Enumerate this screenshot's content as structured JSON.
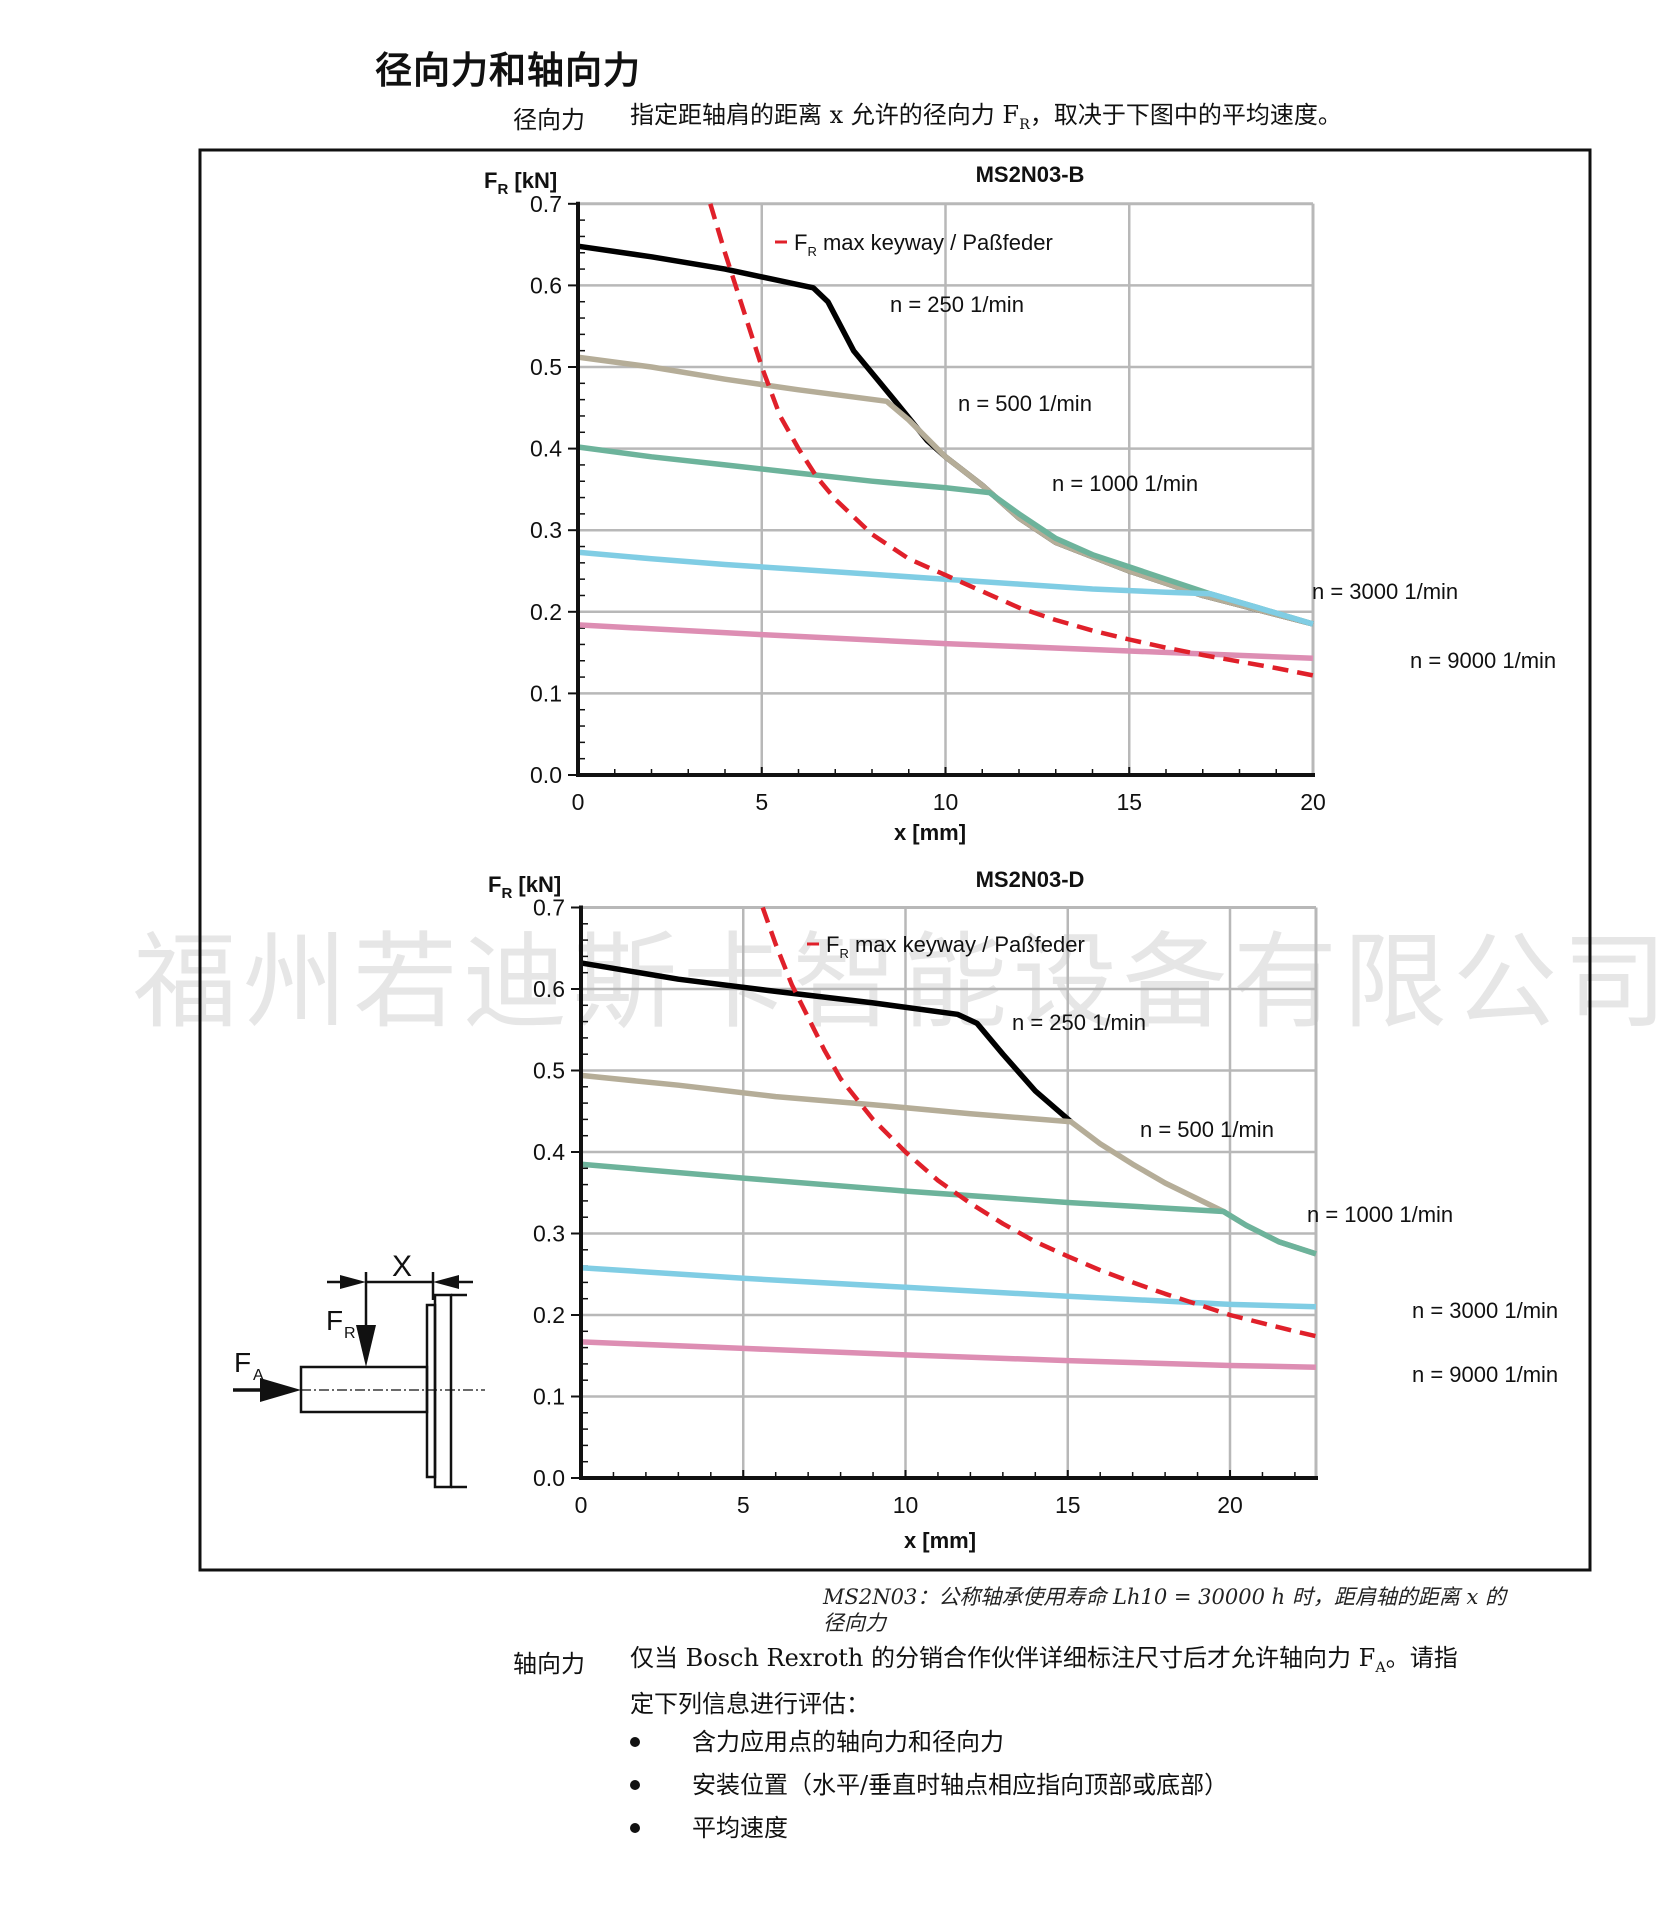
{
  "page": {
    "title": "径向力和轴向力",
    "radial": {
      "label": "径向力",
      "text_before": "指定距轴肩的距离 x 允许的径向力 F",
      "text_sub": "R",
      "text_after": "，取决于下图中的平均速度。"
    },
    "caption": {
      "line1": "MS2N03：公称轴承使用寿命 Lh10 = 30000 h 时，距肩轴的距离 x 的",
      "line2": "径向力"
    },
    "axial": {
      "label": "轴向力",
      "line1_before": "仅当 Bosch Rexroth 的分销合作伙伴详细标注尺寸后才允许轴向力 F",
      "line1_sub": "A",
      "line1_after": "。请指",
      "line2": "定下列信息进行评估：",
      "bullets": [
        "含力应用点的轴向力和径向力",
        "安装位置（水平/垂直时轴点相应指向顶部或底部）",
        "平均速度"
      ]
    },
    "watermark": "福州若迪斯卡智能设备有限公司",
    "diagram": {
      "x_label": "X",
      "fr_label": "F",
      "fr_sub": "R",
      "fa_label": "F",
      "fa_sub": "A"
    }
  },
  "colors": {
    "n250": "#000000",
    "n500": "#b5ad98",
    "n1000": "#6db39b",
    "n3000": "#80cde4",
    "n9000": "#dd8eb3",
    "fr_max": "#e0202a",
    "grid": "#b8b8b8",
    "watermark": "#e6e6e6"
  },
  "chart_data": [
    {
      "type": "line",
      "title": "MS2N03-B",
      "xlabel": "x [mm]",
      "ylabel": "F_R [kN]",
      "xlim": [
        0,
        20
      ],
      "ylim": [
        0,
        0.7
      ],
      "xticks": [
        "0",
        "5",
        "10",
        "15",
        "20"
      ],
      "yticks": [
        "0.0",
        "0.1",
        "0.2",
        "0.3",
        "0.4",
        "0.5",
        "0.6",
        "0.7"
      ],
      "grid": true,
      "legend": "F_R max keyway / Paßfeder",
      "series": [
        {
          "name": "n = 250 1/min",
          "color_key": "n250",
          "x": [
            0,
            2,
            4,
            6.4,
            6.8,
            7.5,
            8.6,
            9.5,
            10,
            11,
            12,
            13,
            15,
            17,
            20
          ],
          "y": [
            0.648,
            0.635,
            0.62,
            0.597,
            0.58,
            0.52,
            0.46,
            0.41,
            0.39,
            0.355,
            0.315,
            0.285,
            0.25,
            0.22,
            0.185
          ]
        },
        {
          "name": "n = 500 1/min",
          "color_key": "n500",
          "x": [
            0,
            2,
            4,
            6,
            8.4,
            9,
            10,
            11,
            12,
            13,
            15,
            17,
            20
          ],
          "y": [
            0.512,
            0.5,
            0.485,
            0.472,
            0.458,
            0.435,
            0.39,
            0.355,
            0.315,
            0.285,
            0.25,
            0.22,
            0.185
          ]
        },
        {
          "name": "n = 1000 1/min",
          "color_key": "n1000",
          "x": [
            0,
            2,
            4,
            6,
            8,
            10,
            11.2,
            12,
            13,
            14,
            15,
            16,
            17.2,
            18.5,
            20
          ],
          "y": [
            0.402,
            0.39,
            0.38,
            0.37,
            0.36,
            0.352,
            0.346,
            0.32,
            0.29,
            0.27,
            0.255,
            0.24,
            0.222,
            0.205,
            0.185
          ]
        },
        {
          "name": "n = 3000 1/min",
          "color_key": "n3000",
          "x": [
            0,
            2,
            4,
            6,
            8,
            10,
            12,
            14,
            16,
            17.2,
            18.5,
            20
          ],
          "y": [
            0.273,
            0.265,
            0.258,
            0.252,
            0.246,
            0.24,
            0.234,
            0.228,
            0.224,
            0.222,
            0.205,
            0.185
          ]
        },
        {
          "name": "n = 9000 1/min",
          "color_key": "n9000",
          "x": [
            0,
            5,
            10,
            15,
            20
          ],
          "y": [
            0.184,
            0.172,
            0.161,
            0.152,
            0.143
          ]
        },
        {
          "name": "F_R max keyway / Paßfeder",
          "color_key": "fr_max",
          "dashed": true,
          "x": [
            3.6,
            4,
            4.5,
            5,
            5.5,
            6,
            6.5,
            7,
            8,
            9,
            10,
            11,
            12,
            13,
            14,
            15,
            16,
            17,
            18,
            19,
            20
          ],
          "y": [
            0.7,
            0.64,
            0.57,
            0.5,
            0.44,
            0.4,
            0.365,
            0.338,
            0.295,
            0.265,
            0.245,
            0.225,
            0.205,
            0.19,
            0.177,
            0.166,
            0.156,
            0.147,
            0.139,
            0.131,
            0.122
          ]
        }
      ]
    },
    {
      "type": "line",
      "title": "MS2N03-D",
      "xlabel": "x [mm]",
      "ylabel": "F_R [kN]",
      "xlim": [
        0,
        22.65
      ],
      "ylim": [
        0,
        0.7
      ],
      "xticks": [
        "0",
        "5",
        "10",
        "15",
        "20"
      ],
      "yticks": [
        "0.0",
        "0.1",
        "0.2",
        "0.3",
        "0.4",
        "0.5",
        "0.6",
        "0.7"
      ],
      "grid": true,
      "legend": "F_R max keyway / Paßfeder",
      "series": [
        {
          "name": "n = 250 1/min",
          "color_key": "n250",
          "x": [
            0,
            3,
            6,
            9,
            11.6,
            12.2,
            13,
            14,
            15.1
          ],
          "y": [
            0.632,
            0.612,
            0.597,
            0.583,
            0.569,
            0.558,
            0.52,
            0.475,
            0.437
          ]
        },
        {
          "name": "n = 500 1/min",
          "color_key": "n500",
          "x": [
            0,
            3,
            6,
            9,
            12,
            15.1,
            16,
            17,
            18,
            19.8,
            20.5,
            21.5,
            22.65
          ],
          "y": [
            0.494,
            0.482,
            0.468,
            0.458,
            0.447,
            0.437,
            0.41,
            0.385,
            0.362,
            0.327,
            0.31,
            0.29,
            0.275
          ]
        },
        {
          "name": "n = 1000 1/min",
          "color_key": "n1000",
          "x": [
            0,
            5,
            10,
            15,
            19.8,
            20.5,
            21.5,
            22.65
          ],
          "y": [
            0.385,
            0.368,
            0.352,
            0.338,
            0.327,
            0.31,
            0.29,
            0.275
          ]
        },
        {
          "name": "n = 3000 1/min",
          "color_key": "n3000",
          "x": [
            0,
            5,
            10,
            15,
            20,
            22.65
          ],
          "y": [
            0.258,
            0.245,
            0.234,
            0.223,
            0.213,
            0.21
          ]
        },
        {
          "name": "n = 9000 1/min",
          "color_key": "n9000",
          "x": [
            0,
            5,
            10,
            15,
            20,
            22.65
          ],
          "y": [
            0.167,
            0.159,
            0.151,
            0.144,
            0.138,
            0.136
          ]
        },
        {
          "name": "F_R max keyway / Paßfeder",
          "color_key": "fr_max",
          "dashed": true,
          "x": [
            5.6,
            6,
            6.5,
            7,
            7.5,
            8,
            9,
            10,
            11,
            12,
            13,
            14,
            15,
            16,
            17,
            18,
            19,
            20,
            21,
            22,
            22.65
          ],
          "y": [
            0.7,
            0.655,
            0.605,
            0.565,
            0.525,
            0.49,
            0.44,
            0.4,
            0.365,
            0.337,
            0.312,
            0.29,
            0.272,
            0.255,
            0.24,
            0.226,
            0.213,
            0.2,
            0.19,
            0.18,
            0.174
          ]
        }
      ]
    }
  ]
}
